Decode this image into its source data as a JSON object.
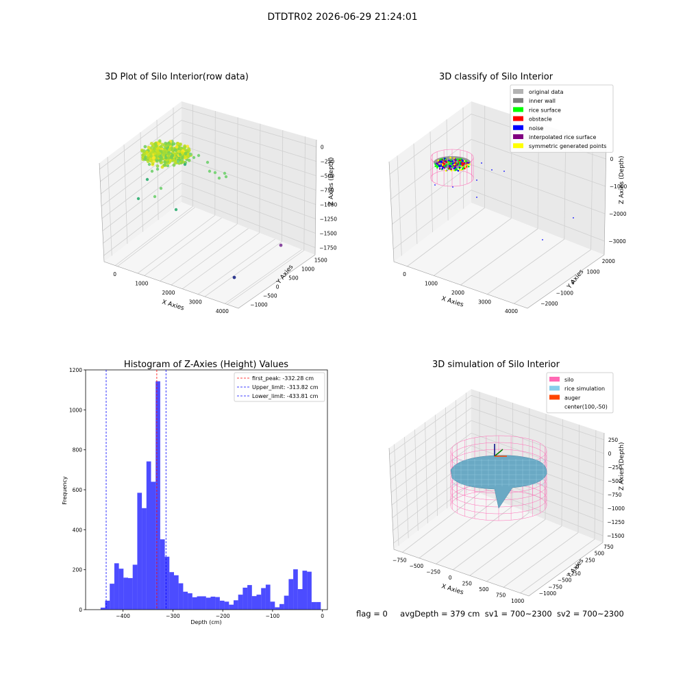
{
  "figure": {
    "suptitle": "DTDTR02 2026-06-29 21:24:01"
  },
  "status": {
    "flag": "flag = 0",
    "avg_depth": "avgDepth = 379 cm",
    "sv1": "sv1 = 700~2300",
    "sv2": "sv2 = 700~2300"
  },
  "chart_data": [
    {
      "id": "raw",
      "type": "scatter",
      "title": "3D Plot of Silo Interior(row data)",
      "xlabel": "X Axies",
      "ylabel": "Y Axies",
      "zlabel": "Z Axies (Depth)",
      "xticks": [
        "0",
        "1000",
        "2000",
        "3000",
        "4000"
      ],
      "yticks": [
        "−1000",
        "−500",
        "0",
        "500",
        "1000",
        "1500"
      ],
      "zticks": [
        "0",
        "−250",
        "−500",
        "−750",
        "−1000",
        "−1250",
        "−1500",
        "−1750"
      ],
      "colormap": "viridis",
      "grid": true
    },
    {
      "id": "classify",
      "type": "scatter",
      "title": "3D classify of Silo Interior",
      "xlabel": "X Axies",
      "ylabel": "Y Axies",
      "zlabel": "Z Axies (Depth)",
      "xticks": [
        "0",
        "1000",
        "2000",
        "3000",
        "4000"
      ],
      "yticks": [
        "−2000",
        "−1000",
        "0",
        "1000",
        "2000"
      ],
      "zticks": [
        "0",
        "−1000",
        "−2000",
        "−3000"
      ],
      "legend_position": "top-right",
      "legend": [
        {
          "label": "original data",
          "color": "#b3b3b3"
        },
        {
          "label": "inner wall",
          "color": "#808080"
        },
        {
          "label": "rice surface",
          "color": "#00ff00"
        },
        {
          "label": "obstacle",
          "color": "#ff0000"
        },
        {
          "label": "noise",
          "color": "#0000ff"
        },
        {
          "label": "interpolated rice surface",
          "color": "#800080"
        },
        {
          "label": "symmetric generated points",
          "color": "#ffff00"
        }
      ],
      "grid": true
    },
    {
      "id": "histogram",
      "type": "bar",
      "title": "Histogram of Z-Axies (Height) Values",
      "xlabel": "Depth (cm)",
      "ylabel": "Frequency",
      "xlim": [
        -475,
        10
      ],
      "ylim": [
        0,
        1200
      ],
      "xticks": [
        -400,
        -300,
        -200,
        -100,
        0
      ],
      "yticks": [
        0,
        200,
        400,
        600,
        800,
        1000,
        1200
      ],
      "bar_color": "#0000ff",
      "bin_edges_start": -445,
      "bin_width": 9.2,
      "values": [
        10,
        45,
        130,
        232,
        205,
        160,
        158,
        225,
        585,
        508,
        742,
        640,
        1143,
        352,
        265,
        188,
        172,
        132,
        90,
        82,
        62,
        67,
        67,
        60,
        65,
        63,
        45,
        40,
        25,
        47,
        75,
        110,
        123,
        68,
        75,
        108,
        125,
        40,
        12,
        28,
        70,
        153,
        202,
        103,
        195,
        190,
        38,
        38
      ],
      "lines": [
        {
          "label": "first_peak: -332.28 cm",
          "value": -332.28,
          "color": "#ff0000"
        },
        {
          "label": "Upper_limit: -313.82 cm",
          "value": -313.82,
          "color": "#0000ff"
        },
        {
          "label": "Lower_limit: -433.81 cm",
          "value": -433.81,
          "color": "#0000ff"
        }
      ],
      "legend_position": "top-right"
    },
    {
      "id": "simulation",
      "type": "surface",
      "title": "3D simulation of Silo Interior",
      "xlabel": "X Axies",
      "ylabel": "Y Axies",
      "zlabel": "Z Axies (Depth)",
      "xticks": [
        "−750",
        "−500",
        "−250",
        "0",
        "250",
        "500",
        "750",
        "1000"
      ],
      "yticks": [
        "−1000",
        "−750",
        "−500",
        "−250",
        "0",
        "250",
        "500",
        "750"
      ],
      "zticks": [
        "250",
        "0",
        "−250",
        "−500",
        "−750",
        "−1000",
        "−1250",
        "−1500"
      ],
      "legend_position": "top-right",
      "legend": [
        {
          "label": "silo",
          "color": "#ff69b4"
        },
        {
          "label": "rice simulation",
          "color": "#87ceeb"
        },
        {
          "label": "auger",
          "color": "#ff4500"
        },
        {
          "label": "center(100,-50)",
          "color": "#ffffff"
        }
      ],
      "grid": true
    }
  ]
}
